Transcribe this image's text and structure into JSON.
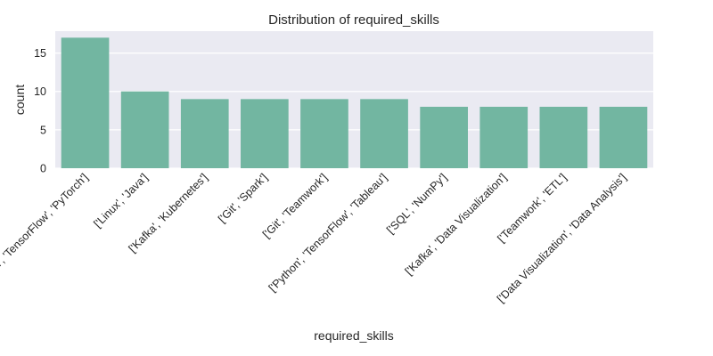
{
  "chart_data": {
    "type": "bar",
    "title": "Distribution of required_skills",
    "xlabel": "required_skills",
    "ylabel": "count",
    "categories": [
      "['Python', 'TensorFlow', 'PyTorch']",
      "['Linux', 'Java']",
      "['Kafka', 'Kubernetes']",
      "['Git', 'Spark']",
      "['Git', 'Teamwork']",
      "['Python', 'TensorFlow', 'Tableau']",
      "['SQL', 'NumPy']",
      "['Kafka', 'Data Visualization']",
      "['Teamwork', 'ETL']",
      "['Data Visualization', 'Data Analysis']"
    ],
    "values": [
      17,
      10,
      9,
      9,
      9,
      9,
      8,
      8,
      8,
      8
    ],
    "ylim": [
      0,
      17.85
    ],
    "yticks": [
      0,
      5,
      10,
      15
    ],
    "grid": true,
    "colors": {
      "bar": "#72b6a1",
      "plot_background": "#eaeaf2",
      "grid": "#ffffff"
    }
  }
}
